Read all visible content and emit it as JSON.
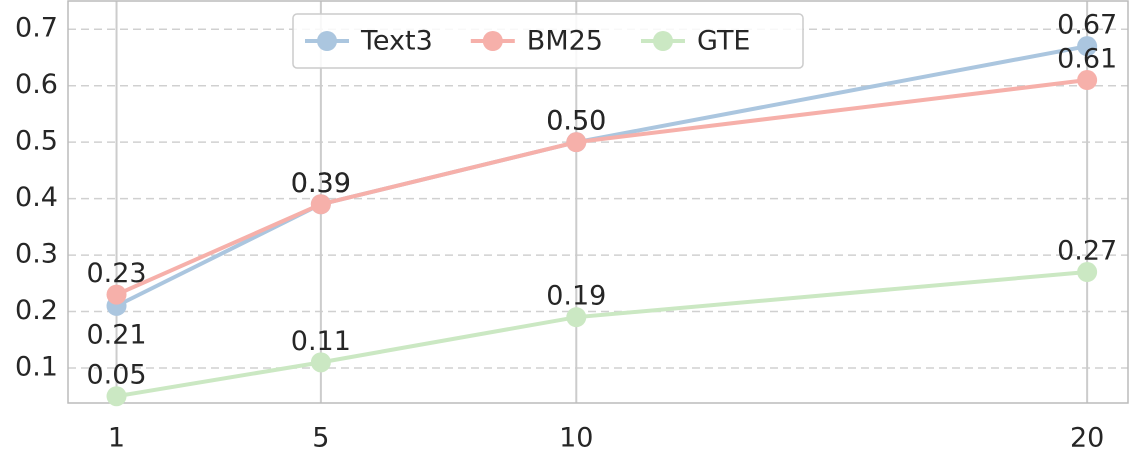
{
  "chart_data": {
    "type": "line",
    "x": [
      1,
      5,
      10,
      20
    ],
    "series": [
      {
        "name": "Text3",
        "color": "#abc6df",
        "values": [
          0.21,
          0.39,
          0.5,
          0.67
        ],
        "value_labels": [
          "0.21",
          "0.39",
          "0.50",
          "0.67"
        ]
      },
      {
        "name": "BM25",
        "color": "#f6b0aa",
        "values": [
          0.23,
          0.39,
          0.5,
          0.61
        ],
        "value_labels": [
          "0.23",
          "0.39",
          "0.50",
          "0.61"
        ]
      },
      {
        "name": "GTE",
        "color": "#cbe8c3",
        "values": [
          0.05,
          0.11,
          0.19,
          0.27
        ],
        "value_labels": [
          "0.05",
          "0.11",
          "0.19",
          "0.27"
        ]
      }
    ],
    "xlim": [
      0.05,
      20.8
    ],
    "xticks": [
      1,
      5,
      10,
      20
    ],
    "ylim": [
      0.038,
      0.75
    ],
    "yticks": [
      0.1,
      0.2,
      0.3,
      0.4,
      0.5,
      0.6,
      0.7
    ],
    "grid": true,
    "legend": "upper center"
  }
}
